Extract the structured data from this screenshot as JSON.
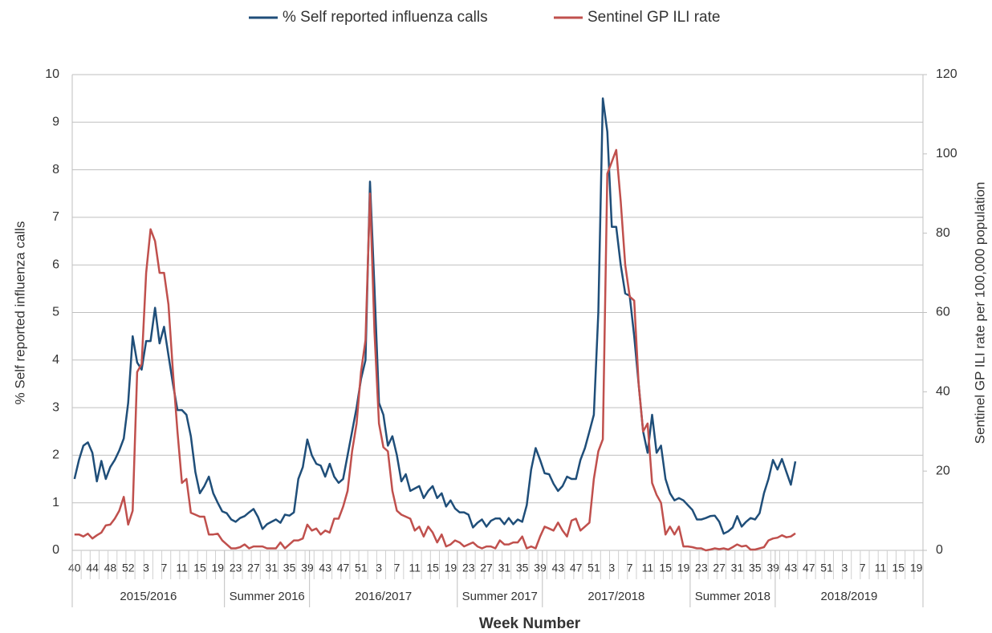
{
  "chart_data": {
    "type": "line",
    "legend": "top",
    "grid": true,
    "x_label": "Week Number",
    "y_label": "% Self reported influenza calls",
    "y2_label": "Sentinel GP ILI rate per 100,000 population",
    "ylim": [
      0,
      10
    ],
    "yticks": [
      0,
      1,
      2,
      3,
      4,
      5,
      6,
      7,
      8,
      9,
      10
    ],
    "y2lim": [
      0,
      120
    ],
    "y2ticks": [
      0,
      20,
      40,
      60,
      80,
      100,
      120
    ],
    "categories": [
      "40",
      null,
      null,
      null,
      "44",
      null,
      null,
      null,
      "48",
      null,
      null,
      null,
      "52",
      null,
      null,
      null,
      "3",
      null,
      null,
      null,
      "7",
      null,
      null,
      null,
      "11",
      null,
      null,
      null,
      "15",
      null,
      null,
      null,
      "19",
      null,
      null,
      null,
      "23",
      null,
      null,
      null,
      "27",
      null,
      null,
      null,
      "31",
      null,
      null,
      null,
      "35",
      null,
      null,
      null,
      "39",
      null,
      null,
      null,
      "43",
      null,
      null,
      null,
      "47",
      null,
      null,
      null,
      "51",
      null,
      null,
      null,
      "3",
      null,
      null,
      null,
      "7",
      null,
      null,
      null,
      "11",
      null,
      null,
      null,
      "15",
      null,
      null,
      null,
      "19",
      null,
      null,
      null,
      "23",
      null,
      null,
      null,
      "27",
      null,
      null,
      null,
      "31",
      null,
      null,
      null,
      "35",
      null,
      null,
      null,
      "39",
      null,
      null,
      null,
      "43",
      null,
      null,
      null,
      "47",
      null,
      null,
      null,
      "51",
      null,
      null,
      null,
      "3",
      null,
      null,
      null,
      "7",
      null,
      null,
      null,
      "11",
      null,
      null,
      null,
      "15",
      null,
      null,
      null,
      "19",
      null,
      null,
      null,
      "23",
      null,
      null,
      null,
      "27",
      null,
      null,
      null,
      "31",
      null,
      null,
      null,
      "35",
      null,
      null,
      null,
      "39",
      null,
      null,
      null,
      "43",
      null,
      null,
      null,
      "47",
      null,
      null,
      null,
      "51",
      null,
      null,
      null,
      "3",
      null,
      null,
      null,
      "7",
      null,
      null,
      null,
      "11",
      null,
      null,
      null,
      "15",
      null,
      null,
      null,
      "19",
      null
    ],
    "groups": [
      {
        "label": "2015/2016",
        "weeks": 34
      },
      {
        "label": "Summer 2016",
        "weeks": 19
      },
      {
        "label": "2016/2017",
        "weeks": 33
      },
      {
        "label": "Summer 2017",
        "weeks": 19
      },
      {
        "label": "2017/2018",
        "weeks": 33
      },
      {
        "label": "Summer 2018",
        "weeks": 19
      },
      {
        "label": "2018/2019",
        "weeks": 33
      }
    ],
    "series": [
      {
        "name": "% Self reported influenza calls",
        "color": "#1f4e79",
        "values": [
          1.5,
          1.9,
          2.2,
          2.27,
          2.05,
          1.45,
          1.88,
          1.5,
          1.75,
          1.9,
          2.1,
          2.35,
          3.1,
          4.5,
          3.95,
          3.8,
          4.4,
          4.4,
          5.1,
          4.35,
          4.7,
          4.1,
          3.5,
          2.95,
          2.95,
          2.85,
          2.4,
          1.65,
          1.2,
          1.35,
          1.55,
          1.2,
          1.0,
          0.82,
          0.78,
          0.65,
          0.6,
          0.68,
          0.72,
          0.8,
          0.87,
          0.7,
          0.45,
          0.55,
          0.6,
          0.65,
          0.58,
          0.75,
          0.73,
          0.8,
          1.5,
          1.75,
          2.33,
          2.0,
          1.82,
          1.78,
          1.55,
          1.82,
          1.55,
          1.42,
          1.5,
          2.0,
          2.5,
          3.0,
          3.6,
          4.0,
          7.75,
          5.5,
          3.1,
          2.85,
          2.2,
          2.4,
          2.0,
          1.45,
          1.6,
          1.25,
          1.3,
          1.35,
          1.1,
          1.25,
          1.35,
          1.1,
          1.2,
          0.92,
          1.05,
          0.88,
          0.8,
          0.8,
          0.75,
          0.48,
          0.58,
          0.65,
          0.5,
          0.62,
          0.67,
          0.67,
          0.55,
          0.68,
          0.55,
          0.65,
          0.6,
          0.95,
          1.7,
          2.15,
          1.9,
          1.62,
          1.6,
          1.4,
          1.25,
          1.35,
          1.55,
          1.5,
          1.5,
          1.9,
          2.15,
          2.5,
          2.85,
          5.0,
          9.5,
          8.8,
          6.8,
          6.8,
          6.0,
          5.4,
          5.35,
          4.5,
          3.5,
          2.5,
          2.05,
          2.85,
          2.05,
          2.2,
          1.5,
          1.2,
          1.05,
          1.1,
          1.05,
          0.95,
          0.85,
          0.65,
          0.65,
          0.68,
          0.72,
          0.73,
          0.6,
          0.35,
          0.4,
          0.48,
          0.72,
          0.5,
          0.6,
          0.68,
          0.65,
          0.78,
          1.2,
          1.5,
          1.9,
          1.7,
          1.92,
          1.65,
          1.38,
          1.87,
          null,
          null,
          null,
          null,
          null,
          null,
          null,
          null,
          null,
          null,
          null,
          null,
          null,
          null,
          null,
          null,
          null,
          null,
          null,
          null,
          null,
          null,
          null,
          null,
          null,
          null,
          null,
          null
        ]
      },
      {
        "name": "Sentinel GP ILI rate",
        "color": "#c0504d",
        "axis": "y2",
        "values": [
          4,
          4,
          3.5,
          4.2,
          3,
          3.8,
          4.5,
          6.3,
          6.5,
          8,
          10,
          13.5,
          6.5,
          10,
          45,
          47,
          70,
          81,
          78,
          70,
          70,
          62,
          45,
          30,
          17,
          18,
          9.5,
          9,
          8.5,
          8.5,
          4,
          4,
          4.2,
          2.5,
          1.5,
          0.5,
          0.5,
          0.8,
          1.5,
          0.5,
          1,
          1,
          1,
          0.5,
          0.5,
          0.5,
          2,
          0.5,
          1.5,
          2.5,
          2.5,
          3,
          6.5,
          5,
          5.5,
          4,
          5,
          4.5,
          8,
          8,
          11,
          15,
          25,
          32,
          45,
          53,
          90,
          55,
          32,
          26,
          25,
          15,
          10,
          9,
          8.5,
          8,
          5,
          6,
          3.5,
          6,
          4.5,
          2,
          4,
          1,
          1.5,
          2.5,
          2,
          1,
          1.5,
          2,
          1,
          0.5,
          1,
          1,
          0.5,
          2.5,
          1.5,
          1.5,
          2,
          2,
          3.5,
          0.5,
          1,
          0.5,
          3.5,
          6,
          5.5,
          5,
          7,
          5,
          3.5,
          7.5,
          8,
          5,
          6,
          7,
          18,
          25,
          28,
          95,
          98,
          101,
          88,
          72,
          64,
          63,
          42,
          30,
          32,
          17,
          14,
          12,
          4,
          6,
          4,
          6,
          1,
          1,
          0.8,
          0.5,
          0.5,
          0,
          0.2,
          0.5,
          0.3,
          0.5,
          0.2,
          0.8,
          1.5,
          1,
          1.2,
          0.2,
          0.2,
          0.5,
          0.8,
          2.5,
          3,
          3.2,
          3.8,
          3.3,
          3.5,
          4.3,
          null,
          null,
          null,
          null,
          null,
          null,
          null,
          null,
          null,
          null,
          null,
          null,
          null,
          null,
          null,
          null,
          null,
          null,
          null,
          null,
          null,
          null,
          null,
          null,
          null,
          null,
          null,
          null
        ]
      }
    ]
  }
}
